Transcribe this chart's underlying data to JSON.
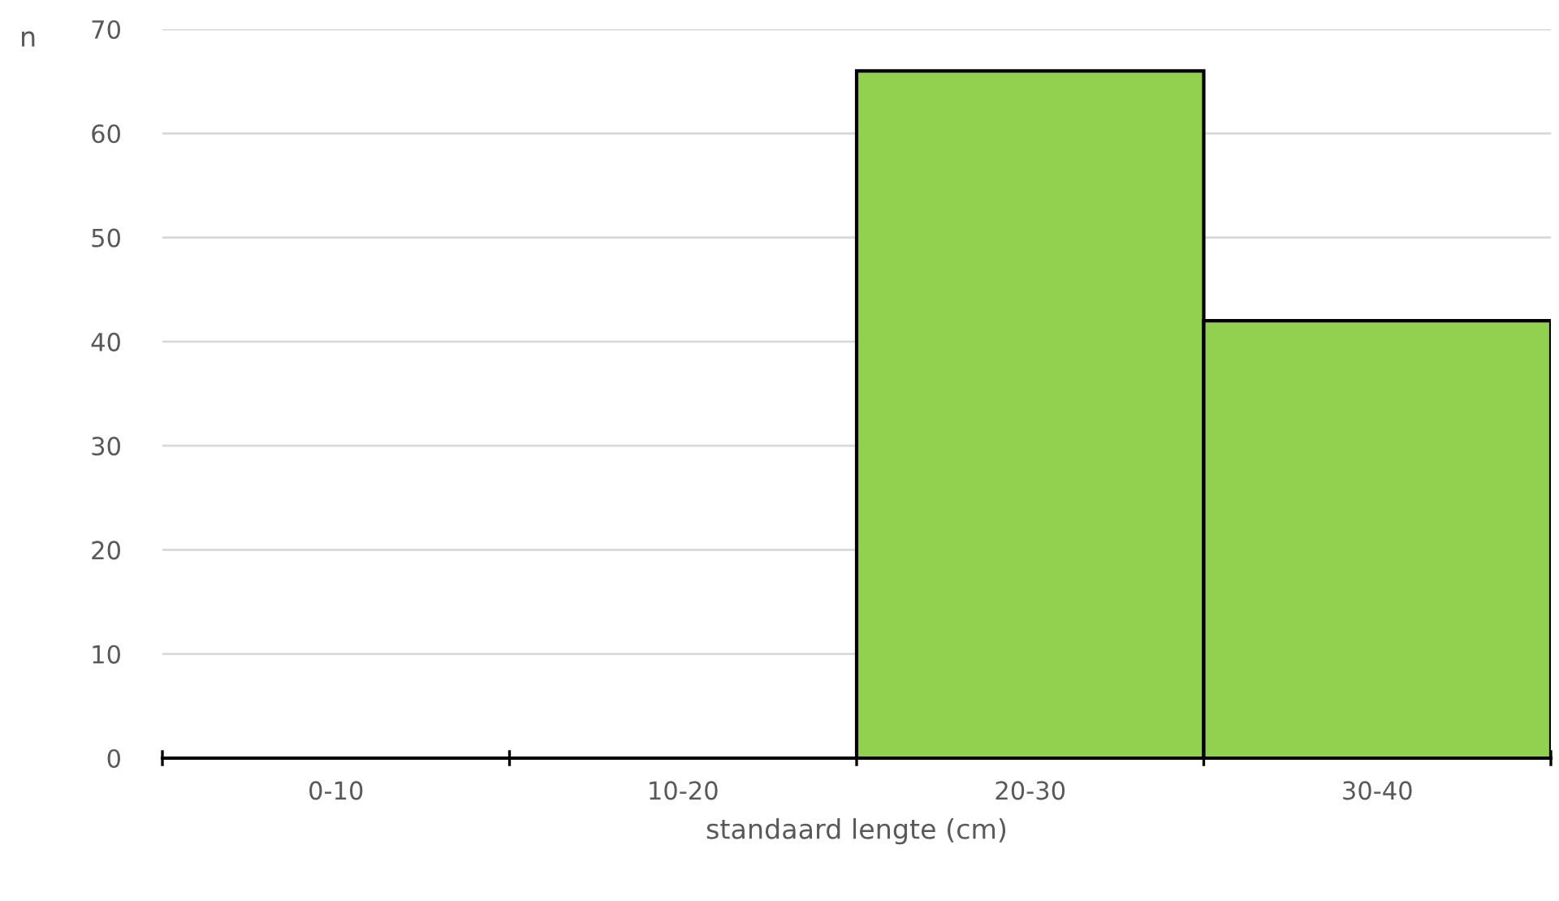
{
  "chart_data": {
    "type": "bar",
    "xlabel": "standaard lengte (cm)",
    "ylabel": "n",
    "categories": [
      "0-10",
      "10-20",
      "20-30",
      "30-40"
    ],
    "values": [
      0,
      0,
      66,
      42
    ],
    "color": "#92d050",
    "ylim": [
      0,
      70
    ],
    "yticks": [
      0,
      10,
      20,
      30,
      40,
      50,
      60,
      70
    ],
    "grid": "y",
    "legend": false
  }
}
